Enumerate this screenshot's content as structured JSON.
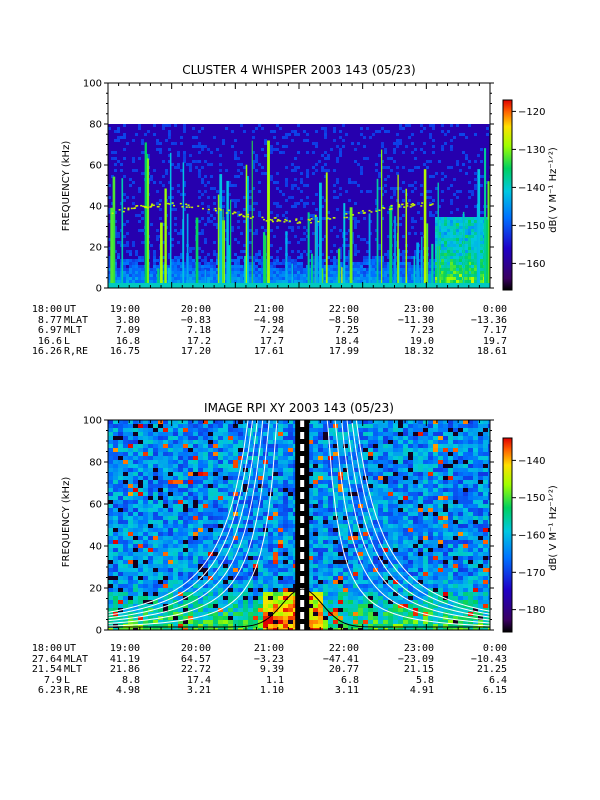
{
  "chart_data": [
    {
      "type": "heatmap",
      "title": "CLUSTER 4 WHISPER 2003 143 (05/23)",
      "ylabel": "FREQUENCY (kHz)",
      "colorbar_label": "dB( V M⁻¹ Hz⁻¹ᐟ²)",
      "ylim": [
        0,
        100
      ],
      "data_freq_range": [
        0,
        80
      ],
      "yticks": [
        "0",
        "20",
        "40",
        "60",
        "80",
        "100"
      ],
      "colorbar_ticks": [
        "-120",
        "-130",
        "-140",
        "-150",
        "-160"
      ],
      "colorbar_range": [
        -167,
        -117
      ],
      "xticks": [
        "18:00",
        "19:00",
        "20:00",
        "21:00",
        "22:00",
        "23:00",
        "0:00"
      ],
      "ephemeris": [
        {
          "name": "UT",
          "values": [
            "18:00",
            "19:00",
            "20:00",
            "21:00",
            "22:00",
            "23:00",
            "0:00"
          ]
        },
        {
          "name": "MLAT",
          "values": [
            "8.77",
            "3.80",
            "−0.83",
            "−4.98",
            "−8.50",
            "−11.30",
            "−13.36"
          ]
        },
        {
          "name": "MLT",
          "values": [
            "6.97",
            "7.09",
            "7.18",
            "7.24",
            "7.25",
            "7.23",
            "7.17"
          ]
        },
        {
          "name": "L",
          "values": [
            "16.6",
            "16.8",
            "17.2",
            "17.7",
            "18.4",
            "19.0",
            "19.7"
          ]
        },
        {
          "name": "R,RE",
          "values": [
            "16.26",
            "16.75",
            "17.20",
            "17.61",
            "17.99",
            "18.32",
            "18.61"
          ]
        }
      ]
    },
    {
      "type": "heatmap",
      "title": "IMAGE RPI XY 2003 143 (05/23)",
      "ylabel": "FREQUENCY (kHz)",
      "colorbar_label": "dB( V M⁻¹ Hz⁻¹ᐟ²)",
      "ylim": [
        0,
        100
      ],
      "yticks": [
        "0",
        "20",
        "40",
        "60",
        "80",
        "100"
      ],
      "colorbar_ticks": [
        "-140",
        "-150",
        "-160",
        "-170",
        "-180"
      ],
      "colorbar_range": [
        -186,
        -134
      ],
      "xticks": [
        "18:00",
        "19:00",
        "20:00",
        "21:00",
        "22:00",
        "23:00",
        "0:00"
      ],
      "ephemeris": [
        {
          "name": "UT",
          "values": [
            "18:00",
            "19:00",
            "20:00",
            "21:00",
            "22:00",
            "23:00",
            "0:00"
          ]
        },
        {
          "name": "MLAT",
          "values": [
            "27.64",
            "41.19",
            "64.57",
            "−3.23",
            "−47.41",
            "−23.09",
            "−10.43"
          ]
        },
        {
          "name": "MLT",
          "values": [
            "21.54",
            "21.86",
            "22.72",
            "9.39",
            "20.77",
            "21.15",
            "21.25"
          ]
        },
        {
          "name": "L",
          "values": [
            "7.9",
            "8.8",
            "17.4",
            "1.1",
            "6.8",
            "5.8",
            "6.4"
          ]
        },
        {
          "name": "R,RE",
          "values": [
            "6.23",
            "4.98",
            "3.21",
            "1.10",
            "3.11",
            "4.91",
            "6.15"
          ]
        }
      ]
    }
  ]
}
